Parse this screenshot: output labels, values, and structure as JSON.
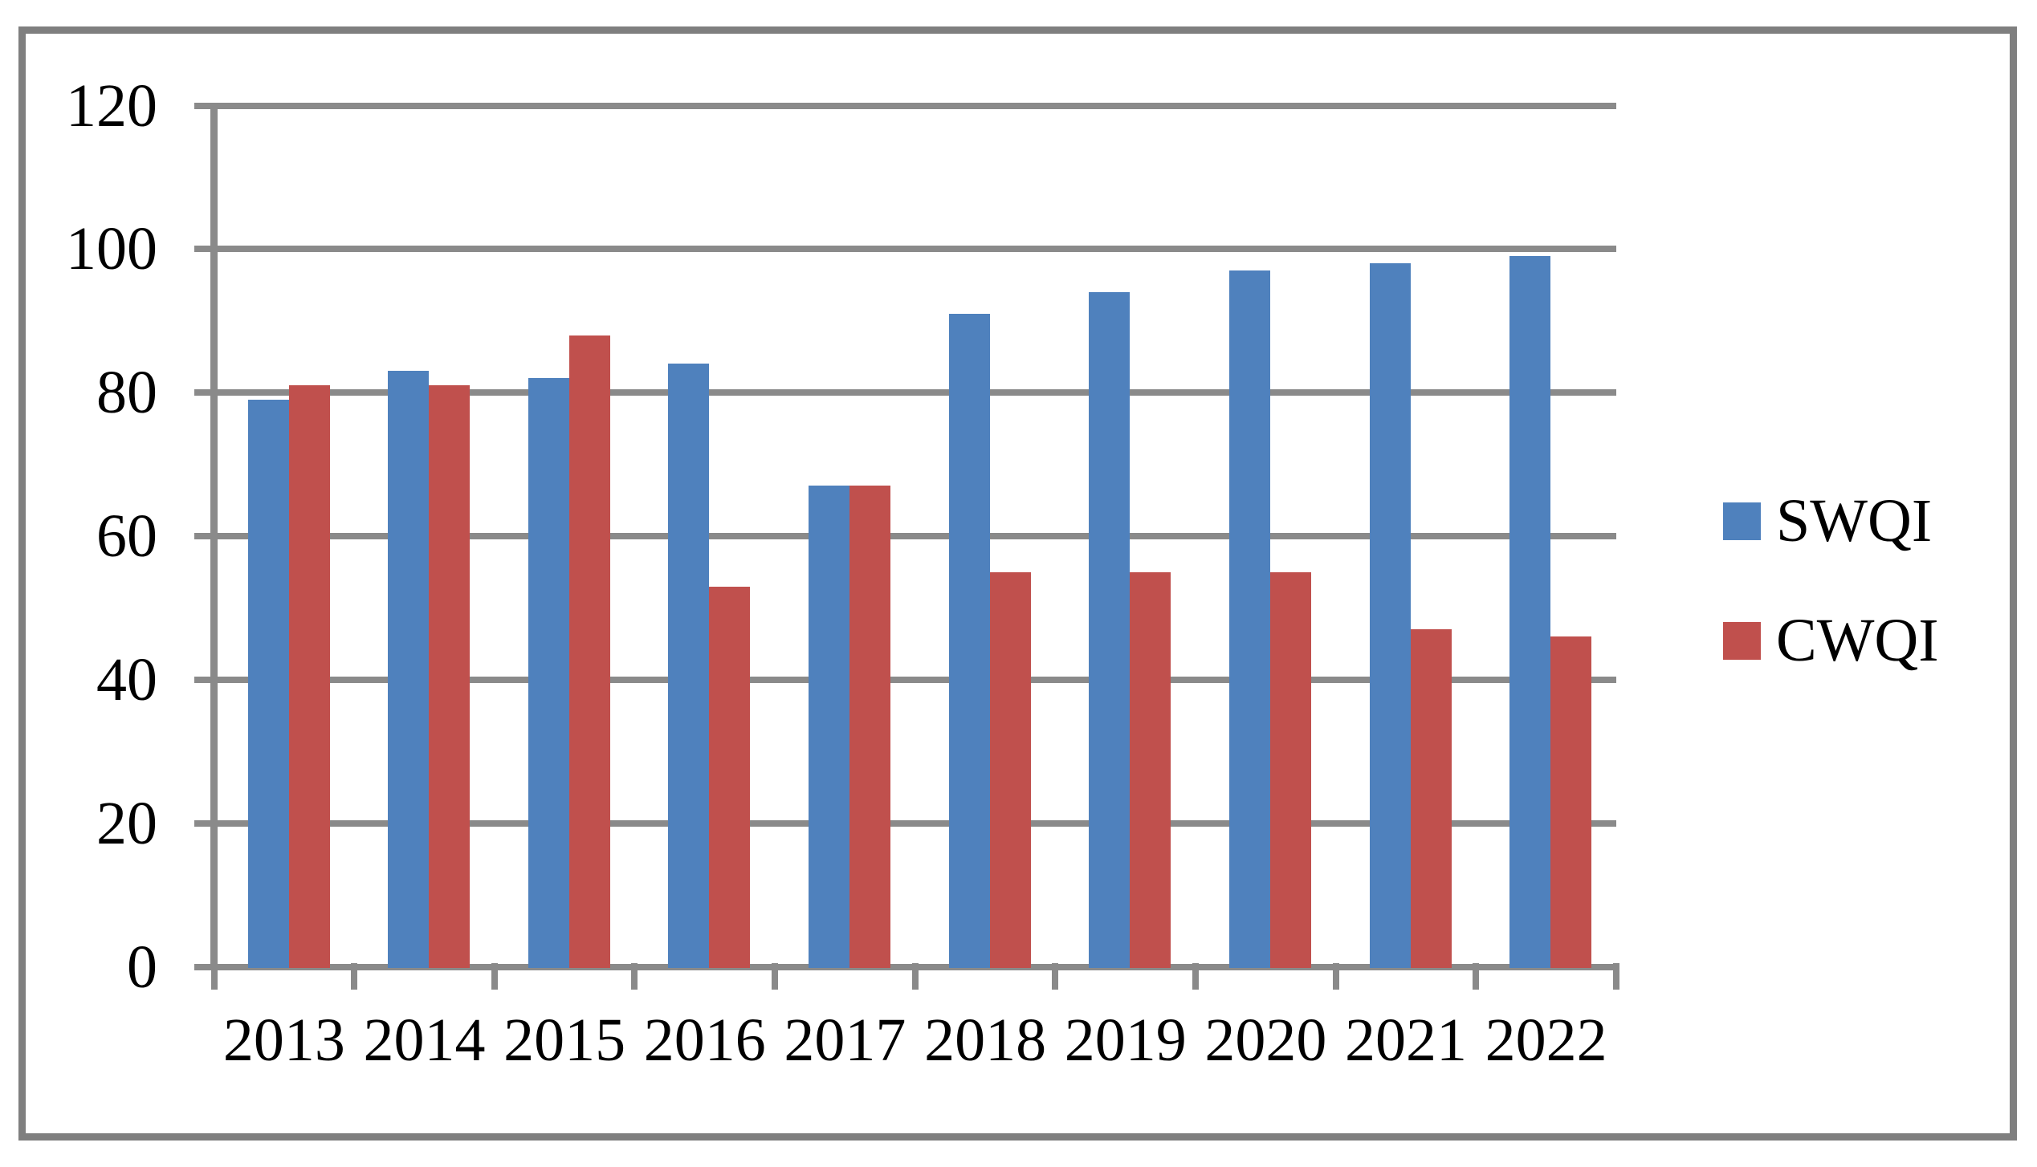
{
  "figure": {
    "background": "#ffffff",
    "border_color": "#7f7f7f"
  },
  "chart_data": {
    "type": "bar",
    "title": "",
    "xlabel": "",
    "ylabel": "",
    "categories": [
      "2013",
      "2014",
      "2015",
      "2016",
      "2017",
      "2018",
      "2019",
      "2020",
      "2021",
      "2022"
    ],
    "series": [
      {
        "name": "SWQI",
        "color": "#4F81BD",
        "values": [
          79,
          83,
          82,
          84,
          67,
          91,
          94,
          97,
          98,
          99
        ]
      },
      {
        "name": "CWQI",
        "color": "#C0504D",
        "values": [
          81,
          81,
          88,
          53,
          67,
          55,
          55,
          55,
          47,
          46
        ]
      }
    ],
    "ylim": [
      0,
      120
    ],
    "yticks": [
      0,
      20,
      40,
      60,
      80,
      100,
      120
    ],
    "grid": true,
    "legend_position": "right-middle",
    "colors": {
      "gridline": "#8a8a8a",
      "axis": "#8a8a8a",
      "text": "#000000"
    }
  }
}
